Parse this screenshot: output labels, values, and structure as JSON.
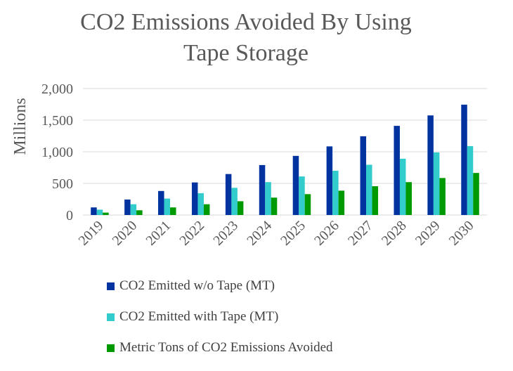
{
  "chart_data": {
    "type": "bar",
    "title_lines": [
      "CO2 Emissions Avoided By Using",
      "Tape Storage"
    ],
    "xlabel": "",
    "ylabel": "Millions",
    "ylim": [
      0,
      2000
    ],
    "yticks": [
      0,
      500,
      1000,
      1500,
      2000
    ],
    "ytick_labels": [
      "0",
      "500",
      "1,000",
      "1,500",
      "2,000"
    ],
    "grid": true,
    "legend_position": "bottom",
    "categories": [
      "2019",
      "2020",
      "2021",
      "2022",
      "2023",
      "2024",
      "2025",
      "2026",
      "2027",
      "2028",
      "2029",
      "2030"
    ],
    "series": [
      {
        "name": "CO2 Emitted w/o Tape (MT)",
        "color": "#0033A0",
        "values": [
          120,
          245,
          380,
          515,
          648,
          790,
          935,
          1085,
          1245,
          1410,
          1575,
          1745
        ]
      },
      {
        "name": "CO2 Emitted with Tape (MT)",
        "color": "#33CCCC",
        "values": [
          85,
          170,
          260,
          345,
          430,
          520,
          610,
          700,
          795,
          890,
          990,
          1090
        ]
      },
      {
        "name": "Metric Tons of CO2 Emissions Avoided",
        "color": "#009900",
        "values": [
          38,
          75,
          120,
          170,
          218,
          275,
          330,
          385,
          455,
          520,
          585,
          665
        ]
      }
    ]
  }
}
